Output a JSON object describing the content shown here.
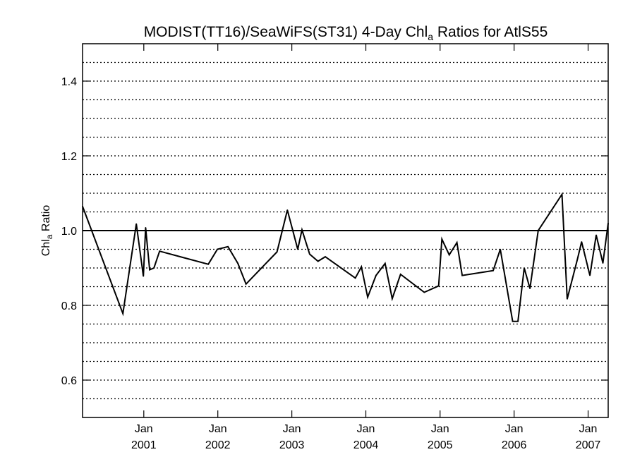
{
  "chart_data": {
    "type": "line",
    "title": "MODIST(TT16)/SeaWiFS(ST31) 4-Day Chl",
    "title_subscript": "a",
    "title_suffix": " Ratios for AtlS55",
    "ylabel": "Chl",
    "ylabel_subscript": "a",
    "ylabel_suffix": " Ratio",
    "xlabel": "",
    "ylim": [
      0.5,
      1.5
    ],
    "xlim": [
      "2000-03-05",
      "2007-04-10"
    ],
    "y_ticks": [
      0.6,
      0.8,
      1.0,
      1.2,
      1.4
    ],
    "y_tick_labels": [
      "0.6",
      "0.8",
      "1.0",
      "1.2",
      "1.4"
    ],
    "y_gridlines": [
      0.55,
      0.6,
      0.65,
      0.7,
      0.75,
      0.8,
      0.85,
      0.9,
      0.95,
      1.05,
      1.1,
      1.15,
      1.2,
      1.25,
      1.3,
      1.35,
      1.4,
      1.45
    ],
    "grid": "horizontal dotted",
    "reference_line": 1.0,
    "x_ticks": [
      {
        "date": "2001-01-01",
        "month": "Jan",
        "year": "2001"
      },
      {
        "date": "2002-01-01",
        "month": "Jan",
        "year": "2002"
      },
      {
        "date": "2003-01-01",
        "month": "Jan",
        "year": "2003"
      },
      {
        "date": "2004-01-01",
        "month": "Jan",
        "year": "2004"
      },
      {
        "date": "2005-01-01",
        "month": "Jan",
        "year": "2005"
      },
      {
        "date": "2006-01-01",
        "month": "Jan",
        "year": "2006"
      },
      {
        "date": "2007-01-01",
        "month": "Jan",
        "year": "2007"
      }
    ],
    "series": [
      {
        "color": "#000000",
        "points": [
          [
            "2000-03-05",
            1.065
          ],
          [
            "2000-09-20",
            0.778
          ],
          [
            "2000-11-25",
            1.018
          ],
          [
            "2000-12-30",
            0.878
          ],
          [
            "2001-01-10",
            1.008
          ],
          [
            "2001-01-30",
            0.895
          ],
          [
            "2001-02-20",
            0.9
          ],
          [
            "2001-03-20",
            0.945
          ],
          [
            "2001-11-15",
            0.91
          ],
          [
            "2001-12-30",
            0.95
          ],
          [
            "2002-02-20",
            0.957
          ],
          [
            "2002-04-10",
            0.912
          ],
          [
            "2002-05-20",
            0.857
          ],
          [
            "2002-10-20",
            0.943
          ],
          [
            "2002-12-10",
            1.055
          ],
          [
            "2003-01-30",
            0.95
          ],
          [
            "2003-02-20",
            1.002
          ],
          [
            "2003-03-30",
            0.937
          ],
          [
            "2003-05-10",
            0.918
          ],
          [
            "2003-06-15",
            0.93
          ],
          [
            "2003-11-10",
            0.873
          ],
          [
            "2003-12-10",
            0.903
          ],
          [
            "2004-01-10",
            0.822
          ],
          [
            "2004-02-20",
            0.88
          ],
          [
            "2004-04-05",
            0.912
          ],
          [
            "2004-05-10",
            0.818
          ],
          [
            "2004-06-20",
            0.883
          ],
          [
            "2004-10-15",
            0.835
          ],
          [
            "2004-12-25",
            0.852
          ],
          [
            "2005-01-10",
            0.977
          ],
          [
            "2005-02-15",
            0.935
          ],
          [
            "2005-03-25",
            0.968
          ],
          [
            "2005-04-20",
            0.88
          ],
          [
            "2005-09-20",
            0.893
          ],
          [
            "2005-10-25",
            0.95
          ],
          [
            "2005-12-25",
            0.757
          ],
          [
            "2006-01-20",
            0.757
          ],
          [
            "2006-02-20",
            0.9
          ],
          [
            "2006-03-20",
            0.845
          ],
          [
            "2006-04-30",
            1.0
          ],
          [
            "2006-08-25",
            1.097
          ],
          [
            "2006-09-20",
            0.817
          ],
          [
            "2006-11-10",
            0.925
          ],
          [
            "2006-11-30",
            0.97
          ],
          [
            "2007-01-10",
            0.88
          ],
          [
            "2007-02-10",
            0.988
          ],
          [
            "2007-03-15",
            0.913
          ],
          [
            "2007-04-10",
            1.02
          ]
        ]
      }
    ]
  }
}
